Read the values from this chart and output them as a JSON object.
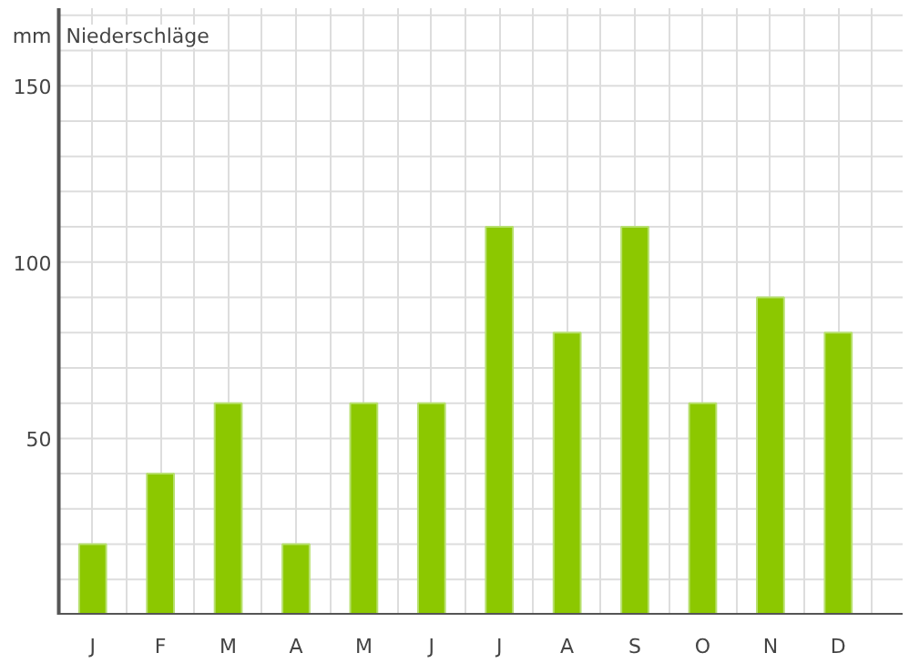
{
  "chart_data": {
    "type": "bar",
    "title": "Niederschläge",
    "ylabel": "mm",
    "categories": [
      "J",
      "F",
      "M",
      "A",
      "M",
      "J",
      "J",
      "A",
      "S",
      "O",
      "N",
      "D"
    ],
    "values": [
      20,
      40,
      60,
      20,
      60,
      60,
      110,
      80,
      110,
      60,
      90,
      80
    ],
    "color": "#8cc800",
    "ylim": [
      0,
      172
    ],
    "yticks": [
      50,
      100,
      150
    ],
    "grid": true
  }
}
